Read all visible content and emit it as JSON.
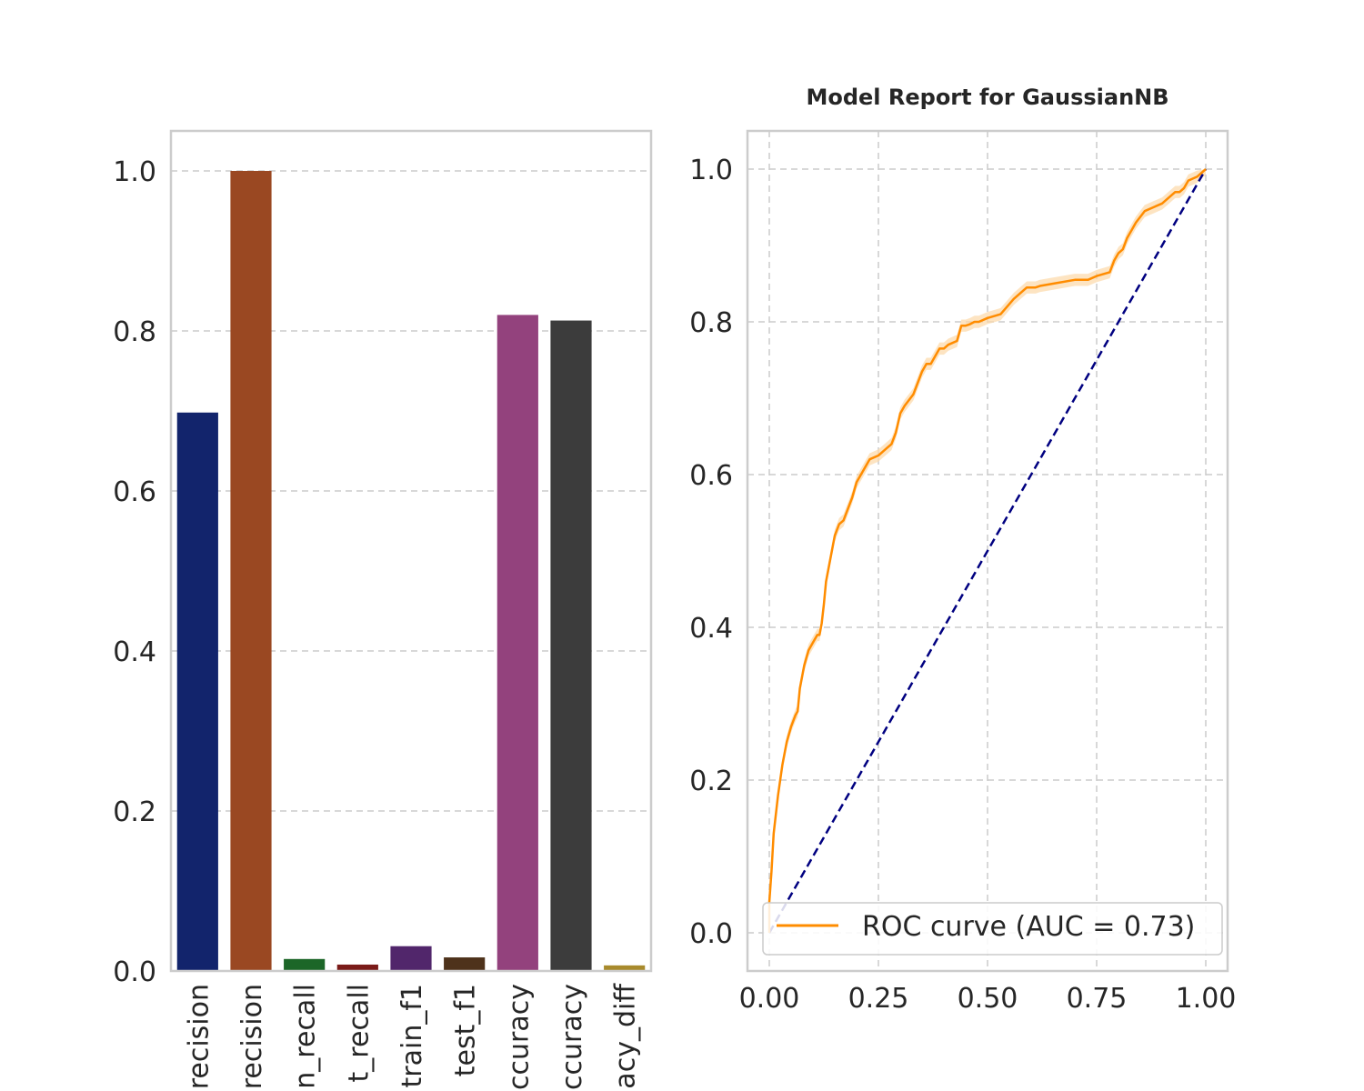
{
  "chart_data": [
    {
      "type": "bar",
      "title": "",
      "xlabel": "",
      "ylabel": "",
      "ylim": [
        0,
        1.05
      ],
      "yticks": [
        "0.0",
        "0.2",
        "0.4",
        "0.6",
        "0.8",
        "1.0"
      ],
      "grid": "horizontal dashed",
      "categories": [
        "train_precision",
        "test_precision",
        "train_recall",
        "test_recall",
        "train_f1",
        "test_f1",
        "train_accuracy",
        "test_accuracy",
        "accuracy_diff"
      ],
      "tick_labels_visible": [
        "recision",
        "recision",
        "n_recall",
        "t_recall",
        "train_f1",
        "test_f1",
        "ccuracy",
        "ccuracy",
        "acy_diff"
      ],
      "values": [
        0.698,
        1.0,
        0.015,
        0.008,
        0.031,
        0.017,
        0.82,
        0.813,
        0.007
      ],
      "colors": [
        "#12246c",
        "#9a4822",
        "#1c6628",
        "#7a1b18",
        "#51266b",
        "#4e321b",
        "#93427d",
        "#3c3c3c",
        "#a88a2c"
      ]
    },
    {
      "type": "line",
      "title": "Model Report for GaussianNB",
      "xlabel": "",
      "ylabel": "",
      "xlim": [
        -0.05,
        1.05
      ],
      "ylim": [
        -0.05,
        1.05
      ],
      "xticks": [
        "0.00",
        "0.25",
        "0.50",
        "0.75",
        "1.00"
      ],
      "yticks": [
        "0.0",
        "0.2",
        "0.4",
        "0.6",
        "0.8",
        "1.0"
      ],
      "grid": "both dashed",
      "legend_position": "lower right",
      "series": [
        {
          "name": "ROC curve (AUC = 0.73)",
          "color": "#ff8c00",
          "band_color": "#fcd9a8",
          "x": [
            0.0,
            0.0,
            0.005,
            0.01,
            0.02,
            0.03,
            0.04,
            0.05,
            0.06,
            0.065,
            0.07,
            0.08,
            0.09,
            0.1,
            0.11,
            0.115,
            0.12,
            0.125,
            0.13,
            0.14,
            0.15,
            0.16,
            0.17,
            0.18,
            0.19,
            0.2,
            0.21,
            0.22,
            0.23,
            0.25,
            0.26,
            0.27,
            0.28,
            0.29,
            0.3,
            0.31,
            0.33,
            0.35,
            0.36,
            0.37,
            0.39,
            0.4,
            0.41,
            0.43,
            0.44,
            0.45,
            0.46,
            0.47,
            0.48,
            0.5,
            0.53,
            0.56,
            0.59,
            0.61,
            0.62,
            0.65,
            0.7,
            0.73,
            0.75,
            0.78,
            0.79,
            0.8,
            0.81,
            0.82,
            0.83,
            0.84,
            0.86,
            0.88,
            0.9,
            0.91,
            0.93,
            0.94,
            0.95,
            0.96,
            0.98,
            1.0
          ],
          "y": [
            0.0,
            0.04,
            0.08,
            0.13,
            0.18,
            0.22,
            0.25,
            0.27,
            0.285,
            0.29,
            0.32,
            0.35,
            0.37,
            0.38,
            0.39,
            0.39,
            0.405,
            0.43,
            0.46,
            0.49,
            0.52,
            0.535,
            0.54,
            0.555,
            0.57,
            0.59,
            0.6,
            0.61,
            0.62,
            0.625,
            0.63,
            0.635,
            0.64,
            0.655,
            0.68,
            0.69,
            0.705,
            0.735,
            0.745,
            0.745,
            0.765,
            0.765,
            0.77,
            0.775,
            0.795,
            0.795,
            0.797,
            0.8,
            0.8,
            0.805,
            0.81,
            0.83,
            0.845,
            0.845,
            0.847,
            0.85,
            0.855,
            0.855,
            0.86,
            0.865,
            0.88,
            0.89,
            0.895,
            0.91,
            0.92,
            0.93,
            0.945,
            0.95,
            0.955,
            0.96,
            0.97,
            0.97,
            0.975,
            0.985,
            0.99,
            1.0
          ]
        },
        {
          "name": "",
          "color": "#000080",
          "style": "dashed",
          "x": [
            0,
            1
          ],
          "y": [
            0,
            1
          ]
        }
      ]
    }
  ]
}
